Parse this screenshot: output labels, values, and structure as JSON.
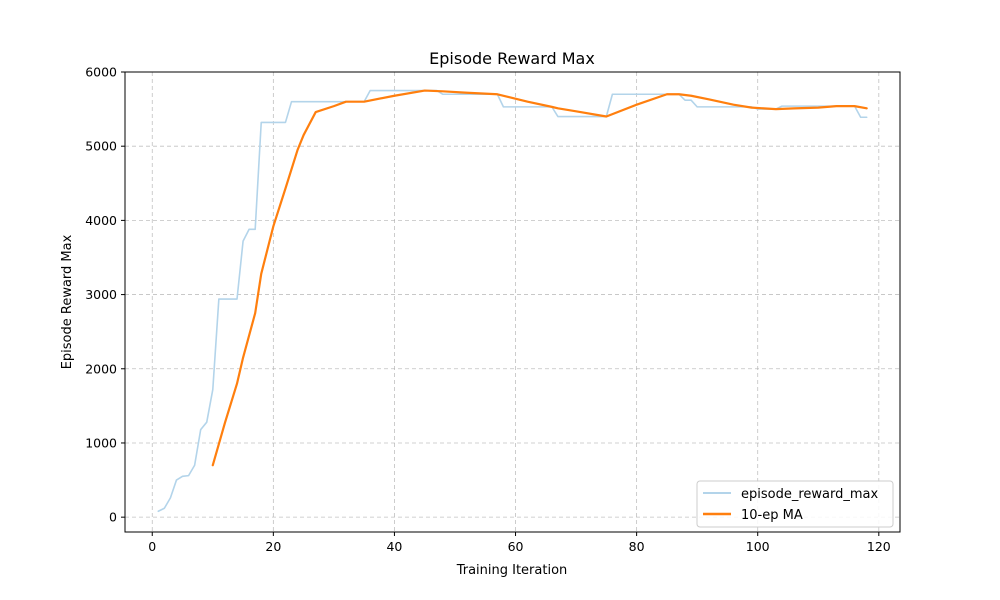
{
  "chart_data": {
    "type": "line",
    "title": "Episode Reward Max",
    "xlabel": "Training Iteration",
    "ylabel": "Episode Reward Max",
    "xlim": [
      -4.5,
      123.5
    ],
    "ylim": [
      -200,
      6000
    ],
    "xticks": [
      0,
      20,
      40,
      60,
      80,
      100,
      120
    ],
    "yticks": [
      0,
      1000,
      2000,
      3000,
      4000,
      5000,
      6000
    ],
    "grid": true,
    "legend_position": "lower-right",
    "series": [
      {
        "name": "episode_reward_max",
        "color": "#b3d4ea",
        "x": [
          1,
          2,
          3,
          4,
          5,
          6,
          7,
          8,
          9,
          10,
          11,
          12,
          13,
          14,
          15,
          16,
          17,
          18,
          19,
          20,
          21,
          22,
          23,
          24,
          25,
          26,
          27,
          28,
          29,
          30,
          31,
          32,
          33,
          34,
          35,
          36,
          37,
          38,
          39,
          40,
          41,
          42,
          43,
          44,
          45,
          46,
          47,
          48,
          49,
          50,
          51,
          52,
          53,
          54,
          55,
          56,
          57,
          58,
          59,
          60,
          61,
          62,
          63,
          64,
          65,
          66,
          67,
          68,
          69,
          70,
          71,
          72,
          73,
          74,
          75,
          76,
          77,
          78,
          79,
          80,
          81,
          82,
          83,
          84,
          85,
          86,
          87,
          88,
          89,
          90,
          91,
          92,
          93,
          94,
          95,
          96,
          97,
          98,
          99,
          100,
          101,
          102,
          103,
          104,
          105,
          106,
          107,
          108,
          109,
          110,
          111,
          112,
          113,
          114,
          115,
          116,
          117,
          118
        ],
        "values": [
          80,
          120,
          260,
          500,
          550,
          560,
          700,
          1180,
          1280,
          1720,
          2940,
          2940,
          2940,
          2940,
          3720,
          3880,
          3880,
          5320,
          5320,
          5320,
          5320,
          5320,
          5600,
          5600,
          5600,
          5600,
          5600,
          5600,
          5600,
          5600,
          5600,
          5600,
          5600,
          5600,
          5600,
          5750,
          5750,
          5750,
          5750,
          5750,
          5750,
          5750,
          5750,
          5750,
          5750,
          5750,
          5750,
          5700,
          5700,
          5700,
          5700,
          5700,
          5700,
          5700,
          5700,
          5700,
          5700,
          5530,
          5530,
          5530,
          5530,
          5530,
          5530,
          5530,
          5530,
          5530,
          5400,
          5400,
          5400,
          5400,
          5400,
          5400,
          5400,
          5400,
          5400,
          5700,
          5700,
          5700,
          5700,
          5700,
          5700,
          5700,
          5700,
          5700,
          5700,
          5700,
          5700,
          5620,
          5620,
          5530,
          5530,
          5530,
          5530,
          5530,
          5530,
          5530,
          5530,
          5530,
          5530,
          5500,
          5500,
          5500,
          5500,
          5540,
          5540,
          5540,
          5540,
          5540,
          5540,
          5540,
          5540,
          5540,
          5540,
          5540,
          5540,
          5540,
          5390,
          5390
        ]
      },
      {
        "name": "10-ep MA",
        "color": "#ff7f0e",
        "x": [
          10,
          12,
          14,
          15,
          17,
          18,
          20,
          22,
          24,
          25,
          27,
          30,
          32,
          35,
          40,
          45,
          48,
          52,
          57,
          62,
          66,
          67,
          70,
          75,
          80,
          85,
          87,
          89,
          92,
          96,
          99,
          101,
          103,
          106,
          110,
          113,
          116,
          118
        ],
        "values": [
          700,
          1270,
          1800,
          2150,
          2750,
          3280,
          3920,
          4430,
          4950,
          5150,
          5460,
          5540,
          5600,
          5600,
          5680,
          5750,
          5740,
          5720,
          5700,
          5600,
          5530,
          5510,
          5470,
          5400,
          5560,
          5700,
          5700,
          5680,
          5630,
          5560,
          5520,
          5510,
          5500,
          5510,
          5520,
          5540,
          5540,
          5510
        ]
      }
    ]
  }
}
